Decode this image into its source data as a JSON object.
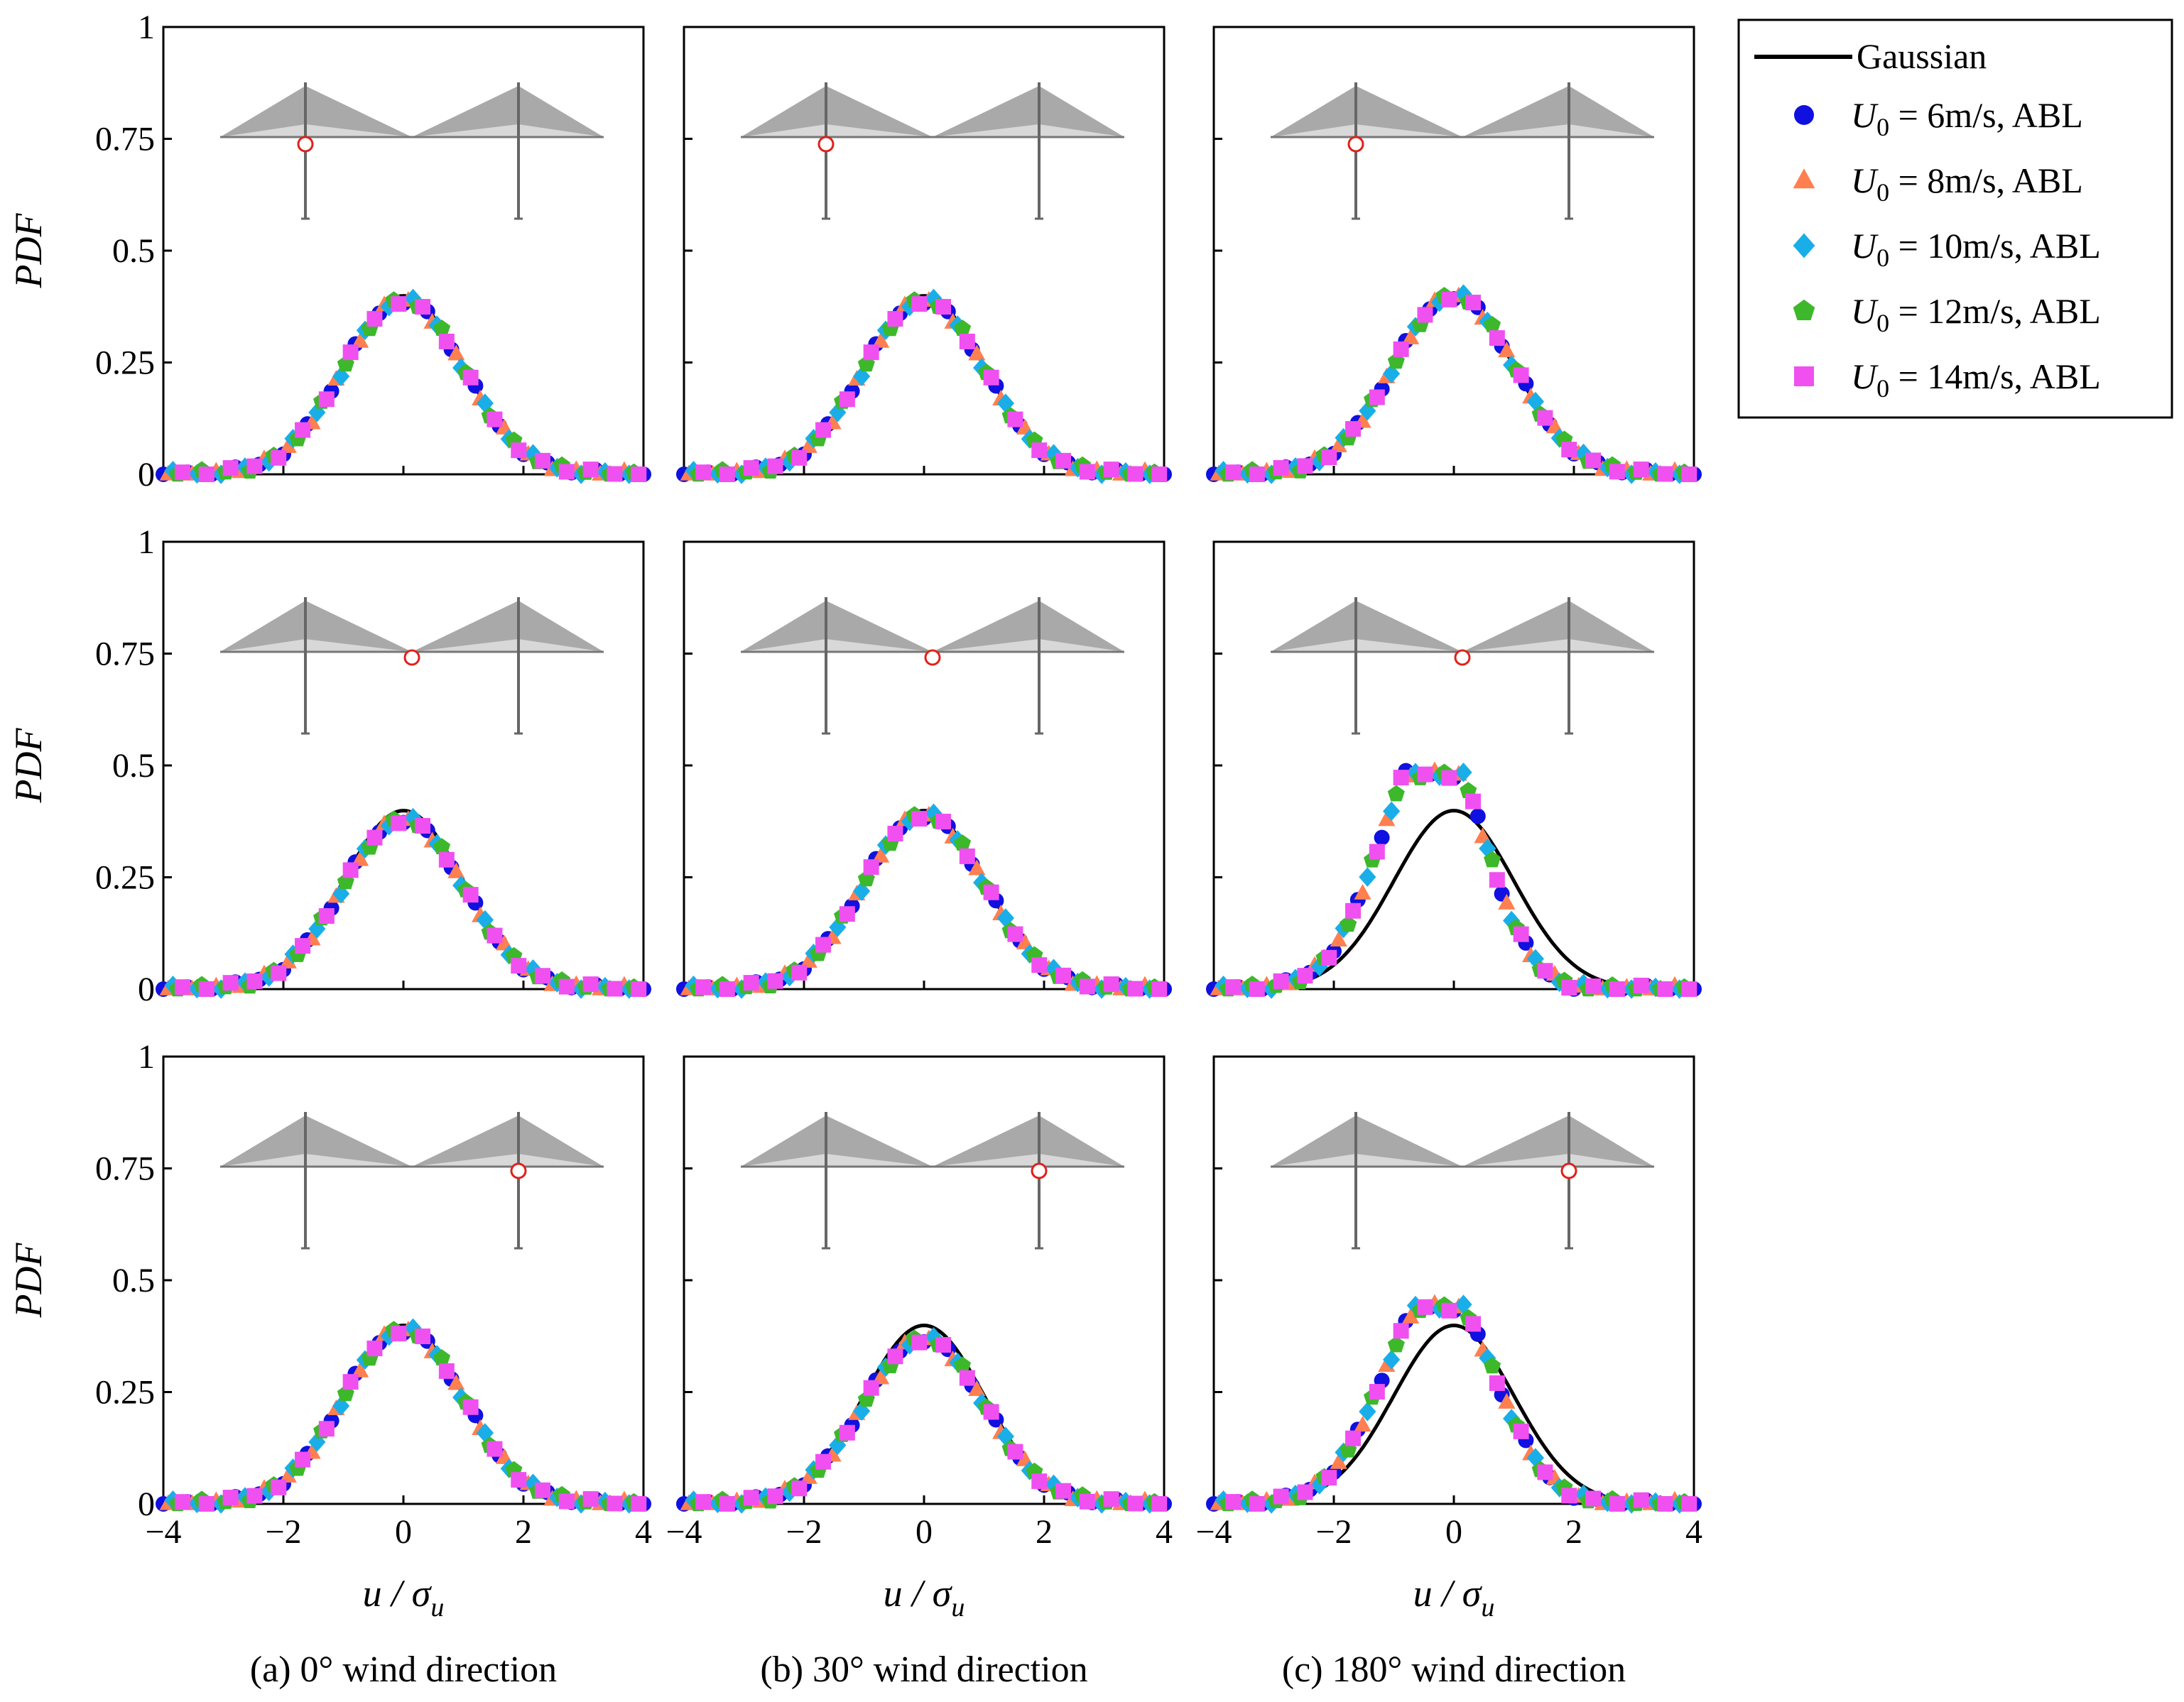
{
  "figure": {
    "ylabel": "PDF",
    "xlabel_main": "u / σ",
    "xlabel_sub": "u",
    "captions": [
      "(a) 0° wind direction",
      "(b) 30° wind direction",
      "(c) 180° wind direction"
    ]
  },
  "legend": {
    "gaussian": "Gaussian",
    "symbol": "U",
    "subscript": "0",
    "entries": [
      {
        "text": " = 6m/s, ABL",
        "marker": "circle",
        "color": "#1010E0"
      },
      {
        "text": " = 8m/s, ABL",
        "marker": "triangle",
        "color": "#FF7F50"
      },
      {
        "text": " = 10m/s, ABL",
        "marker": "diamond",
        "color": "#1AAEE8"
      },
      {
        "text": " = 12m/s, ABL",
        "marker": "pentagon",
        "color": "#3DB82A"
      },
      {
        "text": " = 14m/s, ABL",
        "marker": "square",
        "color": "#F050F0"
      }
    ]
  },
  "chart_data": {
    "type": "scatter",
    "title": "",
    "xlabel": "u / σu",
    "ylabel": "PDF",
    "xlim": [
      -4,
      4
    ],
    "ylim": [
      0,
      1
    ],
    "xticks": [
      "−4",
      "−2",
      "0",
      "2",
      "4"
    ],
    "yticks": [
      "0",
      "0.25",
      "0.5",
      "0.75",
      "1"
    ],
    "x": [
      -4.0,
      -3.6,
      -3.2,
      -2.8,
      -2.4,
      -2.0,
      -1.6,
      -1.2,
      -0.8,
      -0.4,
      0.0,
      0.4,
      0.8,
      1.2,
      1.6,
      2.0,
      2.4,
      2.8,
      3.2,
      3.6,
      4.0
    ],
    "reference_curve": {
      "name": "Gaussian",
      "mean": 0,
      "std": 1
    },
    "panels": [
      {
        "row": 1,
        "column": "(a) 0° wind direction",
        "probe": "left tower, upper",
        "skew": 0,
        "peak": 0.39
      },
      {
        "row": 1,
        "column": "(b) 30° wind direction",
        "probe": "left tower, upper",
        "skew": 0,
        "peak": 0.39
      },
      {
        "row": 1,
        "column": "(c) 180° wind direction",
        "probe": "left tower, upper",
        "skew": 0,
        "peak": 0.4
      },
      {
        "row": 2,
        "column": "(a) 0° wind direction",
        "probe": "mid-span",
        "skew": 0,
        "peak": 0.38
      },
      {
        "row": 2,
        "column": "(b) 30° wind direction",
        "probe": "mid-span",
        "skew": 0,
        "peak": 0.39
      },
      {
        "row": 2,
        "column": "(c) 180° wind direction",
        "probe": "mid-span",
        "skew": -0.9,
        "peak": 0.48
      },
      {
        "row": 3,
        "column": "(a) 0° wind direction",
        "probe": "right tower, upper",
        "skew": 0,
        "peak": 0.39
      },
      {
        "row": 3,
        "column": "(b) 30° wind direction",
        "probe": "right tower, upper",
        "skew": 0,
        "peak": 0.37
      },
      {
        "row": 3,
        "column": "(c) 180° wind direction",
        "probe": "right tower, upper",
        "skew": -0.6,
        "peak": 0.44
      }
    ],
    "series": [
      {
        "name": "U0 = 6m/s, ABL",
        "marker": "circle",
        "color": "#1010E0",
        "offset": 0.0
      },
      {
        "name": "U0 = 8m/s, ABL",
        "marker": "triangle",
        "color": "#FF7F50",
        "offset": 0.08
      },
      {
        "name": "U0 = 10m/s, ABL",
        "marker": "diamond",
        "color": "#1AAEE8",
        "offset": 0.16
      },
      {
        "name": "U0 = 12m/s, ABL",
        "marker": "pentagon",
        "color": "#3DB82A",
        "offset": 0.24
      },
      {
        "name": "U0 = 14m/s, ABL",
        "marker": "square",
        "color": "#F050F0",
        "offset": 0.32
      }
    ]
  }
}
